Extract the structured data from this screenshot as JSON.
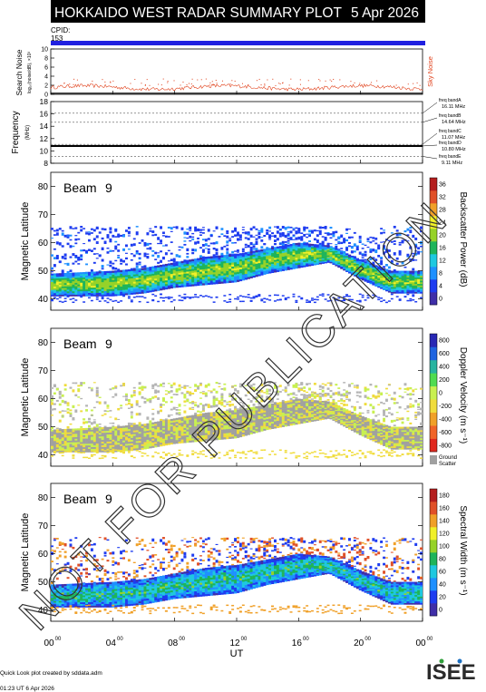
{
  "header": {
    "title": "HOKKAIDO WEST RADAR SUMMARY PLOT",
    "date": "5 Apr 2026",
    "cpid_label": "CPID:",
    "cpid_value": "153"
  },
  "noise_panel": {
    "ylabel": "Search Noise",
    "ylabel_sub": "log₁₀(noise/dB), ×10³",
    "series_label": "Sky Noise",
    "series_color": "#e0401a",
    "yticks": [
      "0",
      "2",
      "4",
      "6",
      "8",
      "10"
    ],
    "ylim": [
      0,
      10
    ]
  },
  "freq_panel": {
    "ylabel": "Frequency",
    "ylabel_sub": "(MHz)",
    "yticks": [
      "8",
      "10",
      "12",
      "14",
      "16",
      "18"
    ],
    "ylim": [
      8,
      18
    ],
    "bands": [
      {
        "name": "freq bandA",
        "value_label": "16.11 MHz",
        "mhz": 16.11
      },
      {
        "name": "freq bandB",
        "value_label": "14.64 MHz",
        "mhz": 14.64
      },
      {
        "name": "freq bandC",
        "value_label": "11.07 MHz",
        "mhz": 11.07
      },
      {
        "name": "freq bandD",
        "value_label": "10.80 MHz",
        "mhz": 10.8
      },
      {
        "name": "freq bandE",
        "value_label": "9.11 MHz",
        "mhz": 9.11
      }
    ],
    "active_mhz": 10.8
  },
  "panels": [
    {
      "beam_label": "Beam",
      "beam_number": "9",
      "ylabel": "Magnetic Latitude",
      "yticks": [
        "40",
        "50",
        "60",
        "70",
        "80"
      ],
      "colorbar_label": "Backscatter Power (dB)",
      "colorbar_ticks": [
        "0",
        "4",
        "8",
        "12",
        "16",
        "20",
        "24",
        "28",
        "32",
        "36"
      ],
      "palette": "power"
    },
    {
      "beam_label": "Beam",
      "beam_number": "9",
      "ylabel": "Magnetic Latitude",
      "yticks": [
        "40",
        "50",
        "60",
        "70",
        "80"
      ],
      "colorbar_label": "Doppler Velocity (m s⁻¹)",
      "colorbar_ticks": [
        "-800",
        "-600",
        "-400",
        "-200",
        "0",
        "200",
        "400",
        "600",
        "800"
      ],
      "ground_scatter_label_1": "Ground",
      "ground_scatter_label_2": "Scatter",
      "palette": "velocity"
    },
    {
      "beam_label": "Beam",
      "beam_number": "9",
      "ylabel": "Magnetic Latitude",
      "yticks": [
        "40",
        "50",
        "60",
        "70",
        "80"
      ],
      "colorbar_label": "Spectral Width (m s⁻¹)",
      "colorbar_ticks": [
        "0",
        "20",
        "40",
        "60",
        "80",
        "100",
        "120",
        "140",
        "160",
        "180"
      ],
      "palette": "width"
    }
  ],
  "xaxis": {
    "label": "UT",
    "ticks": [
      "00",
      "04",
      "08",
      "12",
      "16",
      "20",
      "00"
    ],
    "tick_superscript": "00"
  },
  "footer": {
    "credit": "Quick Look plot created by sddata.adm",
    "timestamp": "01:23 UT 6 Apr 2026",
    "logo_text": "ISEE"
  },
  "chart_data": {
    "type": "heatmap",
    "x_unit": "UT hour",
    "xlim": [
      0,
      24
    ],
    "y_unit": "magnetic latitude (deg)",
    "ylim": [
      36,
      85
    ],
    "ionospheric_band_lower_edge": [
      {
        "ut": 0,
        "mlat": 41
      },
      {
        "ut": 4,
        "mlat": 41
      },
      {
        "ut": 6,
        "mlat": 42
      },
      {
        "ut": 8,
        "mlat": 44
      },
      {
        "ut": 10,
        "mlat": 45
      },
      {
        "ut": 12,
        "mlat": 46
      },
      {
        "ut": 14,
        "mlat": 49
      },
      {
        "ut": 16,
        "mlat": 51
      },
      {
        "ut": 18,
        "mlat": 53
      },
      {
        "ut": 20,
        "mlat": 47
      },
      {
        "ut": 22,
        "mlat": 42
      },
      {
        "ut": 24,
        "mlat": 42
      }
    ],
    "ionospheric_band_upper_edge": [
      {
        "ut": 0,
        "mlat": 49
      },
      {
        "ut": 4,
        "mlat": 50
      },
      {
        "ut": 6,
        "mlat": 51
      },
      {
        "ut": 8,
        "mlat": 53
      },
      {
        "ut": 10,
        "mlat": 55
      },
      {
        "ut": 12,
        "mlat": 56
      },
      {
        "ut": 14,
        "mlat": 58
      },
      {
        "ut": 16,
        "mlat": 60
      },
      {
        "ut": 18,
        "mlat": 59
      },
      {
        "ut": 20,
        "mlat": 54
      },
      {
        "ut": 22,
        "mlat": 50
      },
      {
        "ut": 24,
        "mlat": 50
      }
    ],
    "sky_noise_level": 1.5
  }
}
